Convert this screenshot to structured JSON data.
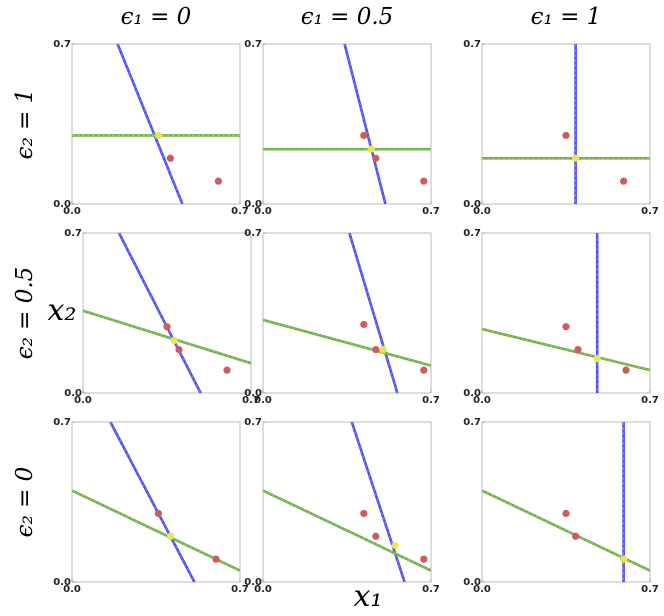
{
  "column_titles": [
    "ϵ₁ = 0",
    "ϵ₁ = 0.5",
    "ϵ₁ = 1"
  ],
  "row_titles": [
    "ϵ₂ = 1",
    "ϵ₂ = 0.5",
    "ϵ₂ = 0"
  ],
  "xlabel": "x₁",
  "ylabel": "x₂",
  "chart_data": [
    {
      "type": "scatter",
      "xlim": [
        0,
        0.7
      ],
      "ylim": [
        0,
        0.7
      ],
      "xticks": [
        {
          "value": 0,
          "label": "0.0"
        },
        0.7
      ],
      "yticks": [
        {
          "value": 0,
          "label": "0.0"
        },
        0.7
      ],
      "series": [
        {
          "style": "line",
          "color": "#4a4cf0",
          "x": [
            0.19,
            0.46
          ],
          "values": [
            0.7,
            0
          ]
        },
        {
          "style": "line",
          "color": "#6fae45",
          "x": [
            0,
            0.7
          ],
          "values": [
            0.3,
            0.3
          ]
        },
        {
          "style": "points",
          "color": "#cd5c5c",
          "x": [
            0.36,
            0.41,
            0.61
          ],
          "values": [
            0.3,
            0.2,
            0.1
          ]
        },
        {
          "style": "points",
          "color": "#e8e84a",
          "x": [
            0.36
          ],
          "values": [
            0.3
          ]
        }
      ]
    },
    {
      "type": "scatter",
      "xlim": [
        0,
        0.7
      ],
      "ylim": [
        0,
        0.7
      ],
      "xticks": [
        {
          "value": 0,
          "label": "0.0"
        },
        0.7
      ],
      "yticks": [
        {
          "value": 0,
          "label": "0.0"
        },
        0.7
      ],
      "series": [
        {
          "style": "line",
          "color": "#4a4cf0",
          "x": [
            0.34,
            0.51
          ],
          "values": [
            0.7,
            0
          ]
        },
        {
          "style": "line",
          "color": "#6fae45",
          "x": [
            0,
            0.7
          ],
          "values": [
            0.24,
            0.24
          ]
        },
        {
          "style": "points",
          "color": "#cd5c5c",
          "x": [
            0.42,
            0.47,
            0.67
          ],
          "values": [
            0.3,
            0.2,
            0.1
          ]
        },
        {
          "style": "points",
          "color": "#e8e84a",
          "x": [
            0.45
          ],
          "values": [
            0.24
          ]
        }
      ]
    },
    {
      "type": "scatter",
      "xlim": [
        0,
        0.7
      ],
      "ylim": [
        0,
        0.7
      ],
      "xticks": [
        {
          "value": 0,
          "label": "0.0"
        },
        0.7
      ],
      "yticks": [
        {
          "value": 0,
          "label": "0.0"
        },
        0.7
      ],
      "series": [
        {
          "style": "line",
          "color": "#4a4cf0",
          "x": [
            0.39,
            0.39
          ],
          "values": [
            0.7,
            0
          ]
        },
        {
          "style": "line",
          "color": "#6fae45",
          "x": [
            0,
            0.7
          ],
          "values": [
            0.2,
            0.2
          ]
        },
        {
          "style": "points",
          "color": "#cd5c5c",
          "x": [
            0.35,
            0.39,
            0.59
          ],
          "values": [
            0.3,
            0.2,
            0.1
          ]
        },
        {
          "style": "points",
          "color": "#e8e84a",
          "x": [
            0.39
          ],
          "values": [
            0.2
          ]
        }
      ]
    },
    {
      "type": "scatter",
      "xlim": [
        0,
        0.7
      ],
      "ylim": [
        0,
        0.7
      ],
      "xticks": [
        {
          "value": 0,
          "label": "0.0"
        },
        0.7
      ],
      "yticks": [
        {
          "value": 0,
          "label": "0.0"
        },
        0.7
      ],
      "series": [
        {
          "style": "line",
          "color": "#4a4cf0",
          "x": [
            0.15,
            0.49
          ],
          "values": [
            0.7,
            0
          ]
        },
        {
          "style": "line",
          "color": "#6fae45",
          "x": [
            0,
            0.7
          ],
          "values": [
            0.36,
            0.13
          ]
        },
        {
          "style": "points",
          "color": "#cd5c5c",
          "x": [
            0.35,
            0.4,
            0.6
          ],
          "values": [
            0.29,
            0.19,
            0.1
          ]
        },
        {
          "style": "points",
          "color": "#e8e84a",
          "x": [
            0.38
          ],
          "values": [
            0.23
          ]
        }
      ]
    },
    {
      "type": "scatter",
      "xlim": [
        0,
        0.7
      ],
      "ylim": [
        0,
        0.7
      ],
      "xticks": [
        {
          "value": 0,
          "label": "0.0"
        },
        0.7
      ],
      "yticks": [
        {
          "value": 0,
          "label": "0.0"
        },
        0.7
      ],
      "series": [
        {
          "style": "line",
          "color": "#4a4cf0",
          "x": [
            0.36,
            0.56
          ],
          "values": [
            0.7,
            0
          ]
        },
        {
          "style": "line",
          "color": "#6fae45",
          "x": [
            0,
            0.7
          ],
          "values": [
            0.32,
            0.12
          ]
        },
        {
          "style": "points",
          "color": "#cd5c5c",
          "x": [
            0.42,
            0.47,
            0.67
          ],
          "values": [
            0.3,
            0.19,
            0.1
          ]
        },
        {
          "style": "points",
          "color": "#e8e84a",
          "x": [
            0.5
          ],
          "values": [
            0.19
          ]
        }
      ]
    },
    {
      "type": "scatter",
      "xlim": [
        0,
        0.7
      ],
      "ylim": [
        0,
        0.7
      ],
      "xticks": [
        {
          "value": 0,
          "label": "0.0"
        },
        0.7
      ],
      "yticks": [
        {
          "value": 0,
          "label": "0.0"
        },
        0.7
      ],
      "series": [
        {
          "style": "line",
          "color": "#4a4cf0",
          "x": [
            0.48,
            0.48
          ],
          "values": [
            0.7,
            0
          ]
        },
        {
          "style": "line",
          "color": "#6fae45",
          "x": [
            0,
            0.7
          ],
          "values": [
            0.28,
            0.1
          ]
        },
        {
          "style": "points",
          "color": "#cd5c5c",
          "x": [
            0.35,
            0.4,
            0.6
          ],
          "values": [
            0.29,
            0.19,
            0.1
          ]
        },
        {
          "style": "points",
          "color": "#e8e84a",
          "x": [
            0.48
          ],
          "values": [
            0.15
          ]
        }
      ]
    },
    {
      "type": "scatter",
      "xlim": [
        0,
        0.7
      ],
      "ylim": [
        0,
        0.7
      ],
      "xticks": [
        {
          "value": 0,
          "label": "0.0"
        },
        0.7
      ],
      "yticks": [
        {
          "value": 0,
          "label": "0.0"
        },
        0.7
      ],
      "series": [
        {
          "style": "line",
          "color": "#4a4cf0",
          "x": [
            0.16,
            0.51
          ],
          "values": [
            0.7,
            0
          ]
        },
        {
          "style": "line",
          "color": "#6fae45",
          "x": [
            0,
            0.7
          ],
          "values": [
            0.4,
            0.05
          ]
        },
        {
          "style": "points",
          "color": "#cd5c5c",
          "x": [
            0.36,
            0.41,
            0.6
          ],
          "values": [
            0.3,
            0.2,
            0.1
          ]
        },
        {
          "style": "points",
          "color": "#e8e84a",
          "x": [
            0.41
          ],
          "values": [
            0.2
          ]
        }
      ]
    },
    {
      "type": "scatter",
      "xlim": [
        0,
        0.7
      ],
      "ylim": [
        0,
        0.7
      ],
      "xticks": [
        {
          "value": 0,
          "label": "0.0"
        },
        0.7
      ],
      "yticks": [
        {
          "value": 0,
          "label": "0.0"
        },
        0.7
      ],
      "series": [
        {
          "style": "line",
          "color": "#4a4cf0",
          "x": [
            0.37,
            0.59
          ],
          "values": [
            0.7,
            0
          ]
        },
        {
          "style": "line",
          "color": "#6fae45",
          "x": [
            0,
            0.7
          ],
          "values": [
            0.4,
            0.05
          ]
        },
        {
          "style": "points",
          "color": "#cd5c5c",
          "x": [
            0.42,
            0.47,
            0.67
          ],
          "values": [
            0.3,
            0.2,
            0.1
          ]
        },
        {
          "style": "points",
          "color": "#e8e84a",
          "x": [
            0.55
          ],
          "values": [
            0.16
          ]
        }
      ]
    },
    {
      "type": "scatter",
      "xlim": [
        0,
        0.7
      ],
      "ylim": [
        0,
        0.7
      ],
      "xticks": [
        {
          "value": 0,
          "label": "0.0"
        },
        0.7
      ],
      "yticks": [
        {
          "value": 0,
          "label": "0.0"
        },
        0.7
      ],
      "series": [
        {
          "style": "line",
          "color": "#4a4cf0",
          "x": [
            0.59,
            0.59
          ],
          "values": [
            0.7,
            0
          ]
        },
        {
          "style": "line",
          "color": "#6fae45",
          "x": [
            0,
            0.7
          ],
          "values": [
            0.4,
            0.05
          ]
        },
        {
          "style": "points",
          "color": "#cd5c5c",
          "x": [
            0.35,
            0.39,
            0.59
          ],
          "values": [
            0.3,
            0.2,
            0.1
          ]
        },
        {
          "style": "points",
          "color": "#e8e84a",
          "x": [
            0.59
          ],
          "values": [
            0.1
          ]
        }
      ]
    }
  ]
}
